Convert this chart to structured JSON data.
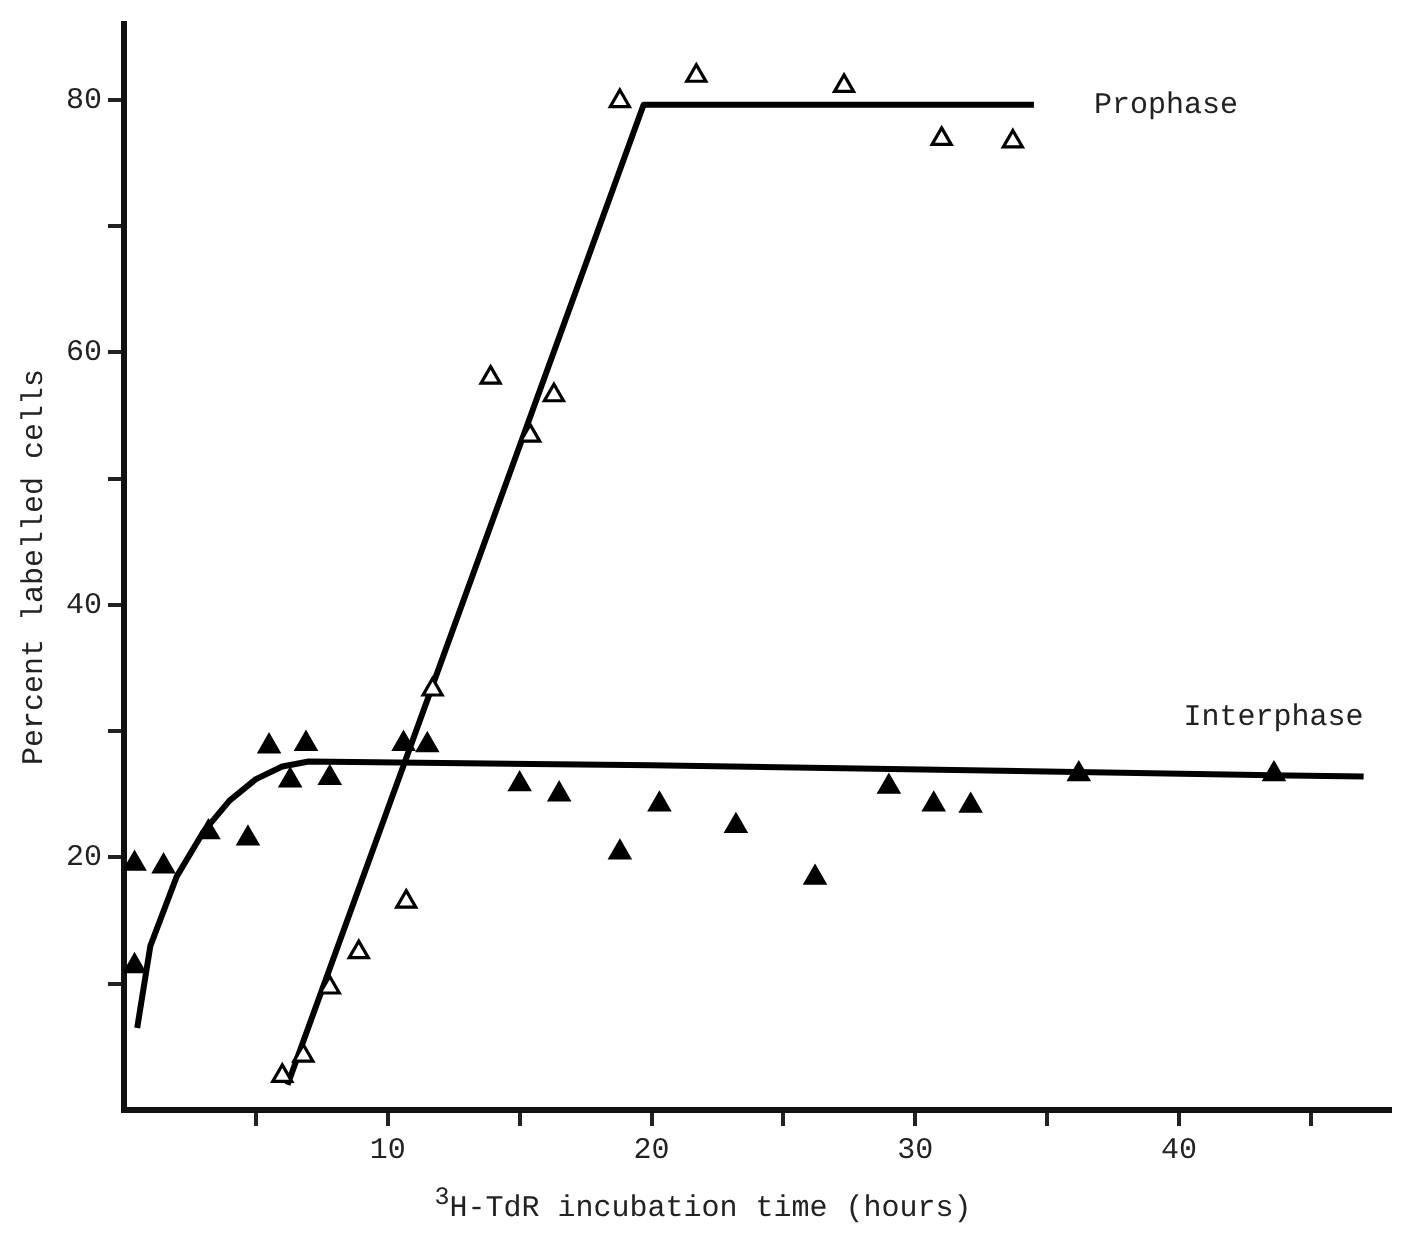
{
  "chart_data": {
    "type": "scatter",
    "xlabel": "$^{3}$H-TdR incubation time (hours)",
    "ylabel": "Percent labelled cells",
    "xlim": [
      0,
      48
    ],
    "ylim": [
      0,
      86
    ],
    "xticks": [
      {
        "value": 5,
        "label": null
      },
      10,
      {
        "value": 15,
        "label": null
      },
      20,
      {
        "value": 25,
        "label": null
      },
      30,
      {
        "value": 35,
        "label": null
      },
      40,
      {
        "value": 45,
        "label": null
      }
    ],
    "yticks": [
      {
        "value": 10,
        "label": null
      },
      20,
      {
        "value": 30,
        "label": null
      },
      40,
      {
        "value": 50,
        "label": null
      },
      60,
      {
        "value": 70,
        "label": null
      },
      80
    ],
    "grid": false,
    "legend": false,
    "marker": "triangle",
    "series": [
      {
        "color": "#ffffff",
        "x": [
          6.0,
          6.8,
          7.8,
          8.9,
          10.7,
          11.7,
          13.9,
          15.4,
          16.3,
          18.8,
          21.7,
          27.3,
          31.0,
          33.7
        ],
        "values": [
          2.7,
          4.3,
          9.7,
          12.5,
          16.5,
          33.3,
          58.0,
          53.4,
          56.6,
          79.9,
          81.9,
          81.1,
          76.9,
          76.7
        ]
      },
      {
        "type": "line",
        "name": "Prophase",
        "color": "#000000",
        "marker": "none",
        "x": [
          6.2,
          19.7,
          34.5
        ],
        "values": [
          2.0,
          79.6,
          79.6
        ]
      },
      {
        "color": "#000000",
        "x": [
          0.4,
          1.5,
          0.4,
          3.2,
          4.7,
          5.5,
          6.9,
          6.3,
          7.8,
          10.6,
          11.5,
          15.0,
          16.5,
          20.3,
          18.8,
          23.2,
          26.2,
          29.0,
          30.7,
          32.1,
          36.2,
          43.6
        ],
        "values": [
          19.5,
          19.3,
          11.4,
          22.0,
          21.5,
          28.8,
          29.0,
          26.1,
          26.3,
          29.0,
          28.9,
          25.8,
          25.0,
          24.2,
          20.4,
          22.5,
          18.4,
          25.6,
          24.2,
          24.1,
          26.6,
          26.6
        ]
      },
      {
        "type": "line",
        "name": "Interphase",
        "color": "#000000",
        "marker": "none",
        "x": [
          0.5,
          1,
          2,
          3,
          4,
          5,
          6,
          7,
          20,
          47
        ],
        "values": [
          6.5,
          13,
          18.5,
          22,
          24.5,
          26.2,
          27.2,
          27.6,
          27.3,
          26.4
        ]
      }
    ]
  }
}
